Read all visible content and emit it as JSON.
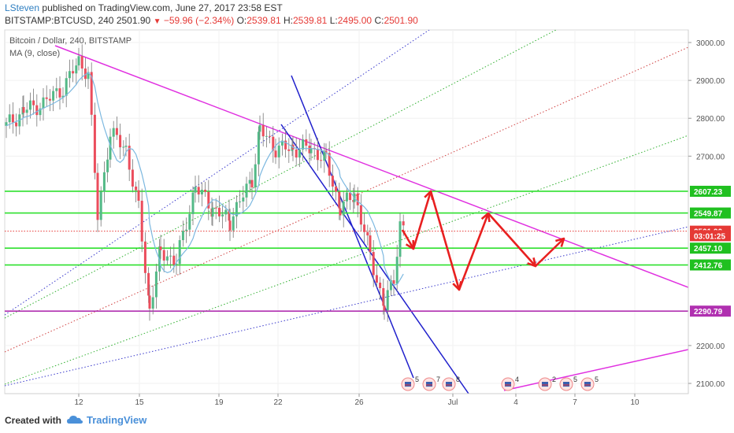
{
  "header": {
    "author": "LSteven",
    "published_text": "published on TradingView.com, June 27, 2017 23:58 EST",
    "symbol_line": "BITSTAMP:BTCUSD, 240",
    "last_price": "2501.90",
    "change": "−59.96 (−2.34%)",
    "o_label": "O:",
    "o_value": "2539.81",
    "h_label": "H:",
    "h_value": "2539.81",
    "l_label": "L:",
    "l_value": "2495.00",
    "c_label": "C:",
    "c_value": "2501.90"
  },
  "legend": {
    "series_title": "Bitcoin / Dollar, 240, BITSTAMP",
    "indicator": "MA (9, close)"
  },
  "footer": {
    "created_with": "Created with",
    "brand": "TradingView"
  },
  "chart_data": {
    "type": "candlestick",
    "x_ticks": [
      "12",
      "15",
      "19",
      "22",
      "26",
      "Jul",
      "4",
      "7",
      "10"
    ],
    "y_ticks": [
      "3000.00",
      "2900.00",
      "2800.00",
      "2700.00",
      "2200.00",
      "2100.00"
    ],
    "ylim": [
      2075,
      3030
    ],
    "price_labels": [
      {
        "value": 2607.23,
        "text": "2607.23",
        "color": "#20c020"
      },
      {
        "value": 2549.87,
        "text": "2549.87",
        "color": "#20c020"
      },
      {
        "value": 2501.9,
        "text": "2501.90",
        "color": "#e53935"
      },
      {
        "value": 2490.0,
        "text": "03:01:25",
        "color": "#e53935"
      },
      {
        "value": 2457.1,
        "text": "2457.10",
        "color": "#20c020"
      },
      {
        "value": 2412.76,
        "text": "2412.76",
        "color": "#20c020"
      },
      {
        "value": 2290.79,
        "text": "2290.79",
        "color": "#b030b0"
      }
    ],
    "horizontal_levels": [
      {
        "value": 2607.23,
        "color": "#2ee02e"
      },
      {
        "value": 2549.87,
        "color": "#2ee02e"
      },
      {
        "value": 2457.1,
        "color": "#2ee02e"
      },
      {
        "value": 2412.76,
        "color": "#2ee02e"
      },
      {
        "value": 2290.79,
        "color": "#b030b0"
      },
      {
        "value": 2501.9,
        "color": "#e53935",
        "style": "dotted"
      }
    ],
    "event_badges": [
      {
        "count": "5"
      },
      {
        "count": "7"
      },
      {
        "count": "8"
      },
      {
        "count": "4"
      },
      {
        "count": "2"
      },
      {
        "count": "5"
      },
      {
        "count": "5"
      }
    ],
    "colors": {
      "up": "#53b987",
      "down": "#eb4d5c",
      "ma": "#7cb8e0",
      "projection": "#e82020"
    }
  }
}
